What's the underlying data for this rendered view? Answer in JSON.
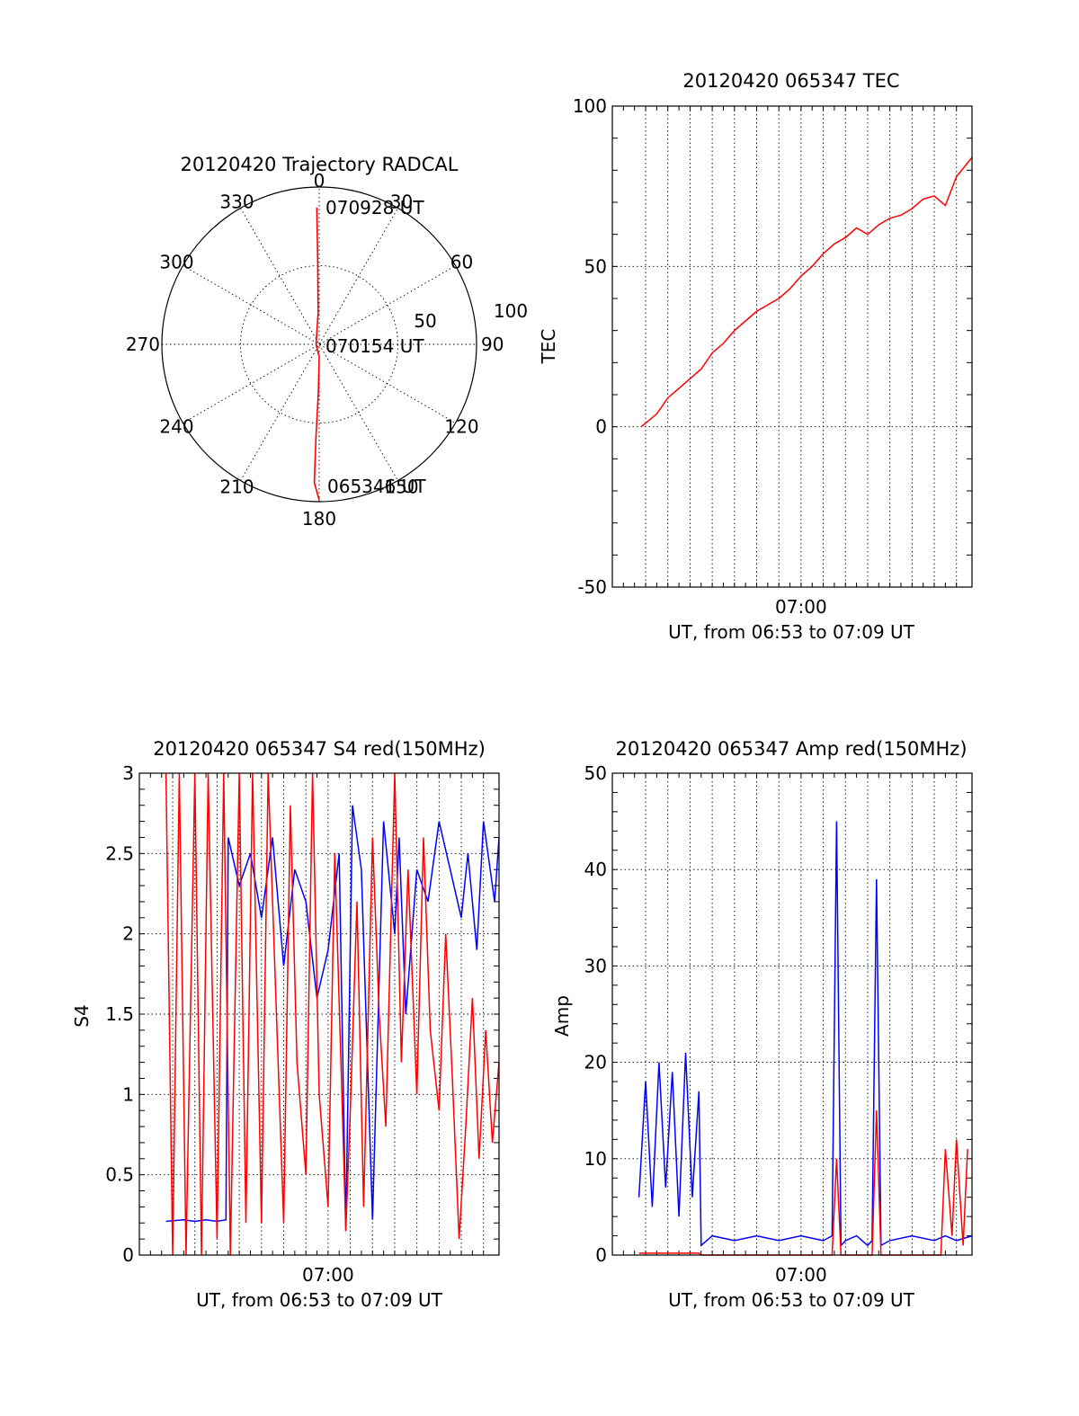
{
  "colors": {
    "red": "#ff0000",
    "blue": "#0000ff",
    "axis": "#000000"
  },
  "chart_data": [
    {
      "type": "polar-trajectory",
      "title": "20120420 Trajectory RADCAL",
      "azimuth_labels": [
        "0",
        "30",
        "60",
        "90",
        "120",
        "150",
        "180",
        "210",
        "240",
        "270",
        "300",
        "330"
      ],
      "radial_labels": [
        "50",
        "100"
      ],
      "rlim": [
        0,
        100
      ],
      "grid": true,
      "track_color": "red",
      "track": {
        "points": [
          {
            "az": 180,
            "r": 99,
            "time": "065346 UT"
          },
          {
            "az": 182,
            "r": 88
          },
          {
            "az": 182,
            "r": 60
          },
          {
            "az": 181,
            "r": 30
          },
          {
            "az": 180,
            "r": 8
          },
          {
            "az": 270,
            "r": 2,
            "time": "070154 UT"
          },
          {
            "az": 358,
            "r": 20
          },
          {
            "az": 359,
            "r": 55
          },
          {
            "az": 359,
            "r": 87,
            "time": "070928 UT"
          }
        ]
      }
    },
    {
      "type": "line",
      "title": "20120420 065347 TEC",
      "ylabel": "TEC",
      "xlabel": "UT, from 06:53 to 07:09 UT",
      "xtick_labels": [
        {
          "x": 7,
          "label": "07:00"
        }
      ],
      "xlim": [
        -1.5,
        14.7
      ],
      "ylim": [
        -50,
        100
      ],
      "yticks": [
        -50,
        0,
        50,
        100
      ],
      "grid": true,
      "series": [
        {
          "color": "red",
          "x": [
            -0.2,
            0.5,
            1.0,
            1.5,
            2.0,
            2.5,
            3.0,
            3.5,
            4.0,
            4.5,
            5.0,
            5.5,
            6.0,
            6.5,
            7.0,
            7.5,
            8.0,
            8.5,
            9.0,
            9.5,
            10.0,
            10.5,
            11.0,
            11.5,
            12.0,
            12.5,
            13.0,
            13.5,
            14.0,
            14.7
          ],
          "y": [
            0,
            4,
            9,
            12,
            15,
            18,
            23,
            26,
            30,
            33,
            36,
            38,
            40,
            43,
            47,
            50,
            54,
            57,
            59,
            62,
            60,
            63,
            65,
            66,
            68,
            71,
            72,
            69,
            78,
            84
          ]
        }
      ]
    },
    {
      "type": "line",
      "title": "20120420 065347 S4 red(150MHz)",
      "ylabel": "S4",
      "xlabel": "UT, from 06:53 to 07:09 UT",
      "xtick_labels": [
        {
          "x": 7,
          "label": "07:00"
        }
      ],
      "xlim": [
        -1.5,
        14.7
      ],
      "ylim": [
        0,
        3
      ],
      "yticks": [
        0,
        0.5,
        1,
        1.5,
        2,
        2.5,
        3
      ],
      "ytick_labels": [
        "0",
        "0.5",
        "1",
        "1.5",
        "2",
        "2.5",
        "3"
      ],
      "grid": true,
      "series": [
        {
          "color": "blue",
          "x": [
            -0.3,
            0.5,
            1.0,
            1.5,
            2.0,
            2.4,
            2.5,
            3.0,
            3.5,
            4.0,
            4.5,
            5.0,
            5.5,
            6.0,
            6.5,
            7.0,
            7.5,
            7.8,
            8.1,
            8.5,
            9.0,
            9.5,
            10.0,
            10.2,
            10.5,
            11.0,
            11.5,
            12.0,
            12.5,
            13.0,
            13.3,
            13.7,
            14.0,
            14.5,
            14.7
          ],
          "y": [
            0.21,
            0.22,
            0.21,
            0.22,
            0.21,
            0.22,
            2.6,
            2.3,
            2.5,
            2.1,
            2.6,
            1.8,
            2.4,
            2.2,
            1.6,
            1.9,
            2.5,
            0.15,
            2.8,
            2.4,
            0.22,
            2.7,
            2.0,
            2.6,
            1.5,
            2.4,
            2.2,
            2.7,
            2.4,
            2.1,
            2.5,
            1.9,
            2.7,
            2.2,
            2.6
          ]
        },
        {
          "color": "red",
          "x": [
            -0.3,
            0.0,
            0.3,
            0.6,
            1.0,
            1.3,
            1.6,
            2.0,
            2.3,
            2.6,
            3.0,
            3.3,
            3.6,
            4.0,
            4.3,
            4.6,
            5.0,
            5.3,
            5.6,
            6.0,
            6.3,
            6.6,
            7.0,
            7.3,
            7.6,
            7.8,
            8.0,
            8.3,
            8.6,
            9.0,
            9.3,
            9.6,
            10.0,
            10.3,
            10.6,
            11.0,
            11.3,
            11.6,
            12.0,
            12.3,
            12.6,
            12.9,
            13.2,
            13.5,
            13.8,
            14.1,
            14.4,
            14.7
          ],
          "y": [
            3,
            0,
            3,
            0,
            3,
            0,
            3,
            0.1,
            3,
            0,
            3,
            0.2,
            3,
            0.2,
            3,
            1.8,
            0.2,
            2.8,
            1.2,
            0.5,
            3,
            1.0,
            0.3,
            2.5,
            1.1,
            0.15,
            0.9,
            2.2,
            0.3,
            2.6,
            1.5,
            0.8,
            3,
            1.2,
            2.4,
            1.0,
            2.6,
            1.4,
            0.9,
            2.0,
            1.1,
            0.1,
            0.8,
            1.6,
            0.6,
            1.4,
            0.7,
            1.2
          ]
        }
      ]
    },
    {
      "type": "line",
      "title": "20120420 065347 Amp red(150MHz)",
      "ylabel": "Amp",
      "xlabel": "UT, from 06:53 to 07:09 UT",
      "xtick_labels": [
        {
          "x": 7,
          "label": "07:00"
        }
      ],
      "xlim": [
        -1.5,
        14.7
      ],
      "ylim": [
        0,
        50
      ],
      "yticks": [
        0,
        10,
        20,
        30,
        40,
        50
      ],
      "grid": true,
      "series": [
        {
          "color": "blue",
          "x": [
            -0.3,
            0.0,
            0.3,
            0.6,
            0.9,
            1.2,
            1.5,
            1.8,
            2.1,
            2.4,
            2.5,
            3.0,
            4.0,
            5.0,
            6.0,
            7.0,
            8.0,
            8.4,
            8.6,
            8.8,
            9.0,
            9.5,
            10.0,
            10.2,
            10.4,
            10.6,
            11.0,
            12.0,
            13.0,
            13.5,
            14.0,
            14.7
          ],
          "y": [
            6,
            18,
            5,
            20,
            7,
            19,
            4,
            21,
            6,
            17,
            1,
            2,
            1.5,
            2,
            1.5,
            2,
            1.5,
            2,
            45,
            1,
            1.5,
            2,
            1,
            1.5,
            39,
            1,
            1.5,
            2,
            1.5,
            2,
            1.5,
            2
          ]
        },
        {
          "color": "red",
          "x": [
            -0.3,
            0.5,
            1.0,
            1.5,
            2.0,
            2.4,
            2.5,
            8.4,
            8.6,
            8.8,
            10.2,
            10.4,
            10.6,
            13.3,
            13.5,
            13.8,
            14.0,
            14.3,
            14.5
          ],
          "y": [
            0.2,
            0.2,
            0.2,
            0.2,
            0.2,
            0.2,
            0,
            0,
            10,
            0,
            0,
            15,
            0,
            0,
            11,
            2,
            12,
            1,
            11
          ]
        }
      ]
    }
  ]
}
